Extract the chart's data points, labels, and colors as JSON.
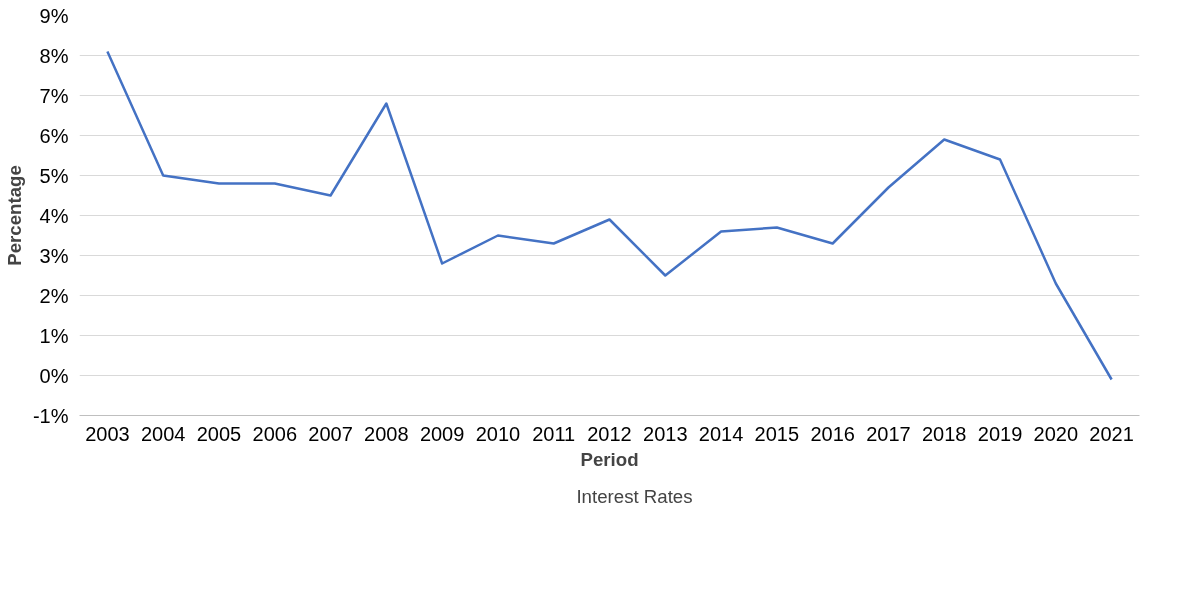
{
  "chart_data": {
    "type": "line",
    "xlabel": "Period",
    "ylabel": "Percentage",
    "categories": [
      "2003",
      "2004",
      "2005",
      "2006",
      "2007",
      "2008",
      "2009",
      "2010",
      "2011",
      "2012",
      "2013",
      "2014",
      "2015",
      "2016",
      "2017",
      "2018",
      "2019",
      "2020",
      "2021"
    ],
    "series": [
      {
        "name": "Interest Rates",
        "color": "#4472c4",
        "values": [
          8.1,
          5.0,
          4.8,
          4.8,
          4.5,
          6.8,
          2.8,
          3.5,
          3.3,
          3.9,
          2.5,
          3.6,
          3.7,
          3.3,
          4.7,
          5.9,
          5.4,
          2.3,
          -0.1
        ]
      }
    ],
    "ylim": [
      -1,
      9
    ],
    "yticks": [
      {
        "value": -1,
        "label": "-1%"
      },
      {
        "value": 0,
        "label": "0%"
      },
      {
        "value": 1,
        "label": "1%"
      },
      {
        "value": 2,
        "label": "2%"
      },
      {
        "value": 3,
        "label": "3%"
      },
      {
        "value": 4,
        "label": "4%"
      },
      {
        "value": 5,
        "label": "5%"
      },
      {
        "value": 6,
        "label": "6%"
      },
      {
        "value": 7,
        "label": "7%"
      },
      {
        "value": 8,
        "label": "8%"
      },
      {
        "value": 9,
        "label": "9%"
      }
    ],
    "grid": "y",
    "legend": "bottom",
    "marker": "none",
    "line_style": "solid"
  }
}
